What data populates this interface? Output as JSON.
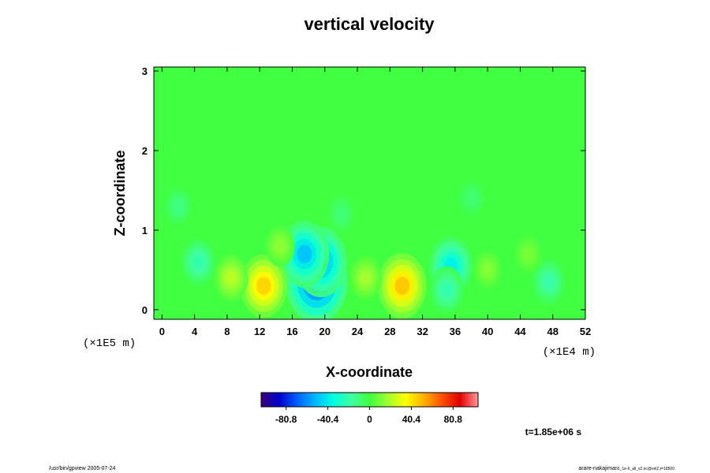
{
  "chart_data": {
    "type": "heatmap",
    "title": "vertical velocity",
    "xlabel": "X-coordinate",
    "ylabel": "Z-coordinate",
    "x_ticks": [
      "0",
      "4",
      "8",
      "12",
      "16",
      "20",
      "24",
      "28",
      "32",
      "36",
      "40",
      "44",
      "48",
      "52"
    ],
    "y_ticks": [
      "0",
      "1",
      "2",
      "3"
    ],
    "xlim": [
      -1,
      52
    ],
    "ylim": [
      -0.12,
      3.05
    ],
    "x_scale_label": "(×1E4 m)",
    "y_scale_label": "(×1E5 m)",
    "colorbar": {
      "range": [
        -105,
        105
      ],
      "tick_values": [
        -80.8,
        -40.4,
        0,
        40.4,
        80.8
      ],
      "tick_labels": [
        "-80.8",
        "-40.4",
        "0",
        "40.4",
        "80.8"
      ],
      "colors": [
        "#3a007a",
        "#0000cc",
        "#0060ff",
        "#00b8ff",
        "#00ffe0",
        "#40ffa0",
        "#40ff40",
        "#a0ff30",
        "#ffff00",
        "#ffb000",
        "#ff5000",
        "#e00000",
        "#ff9a9a"
      ]
    },
    "background_value": 0,
    "features": [
      {
        "x": 19,
        "z": 0.35,
        "w": -72
      },
      {
        "x": 19.5,
        "z": 0.6,
        "w": -55
      },
      {
        "x": 17.5,
        "z": 0.7,
        "w": -50
      },
      {
        "x": 35.5,
        "z": 0.55,
        "w": -38
      },
      {
        "x": 35,
        "z": 0.25,
        "w": -22
      },
      {
        "x": 12.5,
        "z": 0.3,
        "w": 45
      },
      {
        "x": 29.5,
        "z": 0.3,
        "w": 48
      },
      {
        "x": 8.5,
        "z": 0.4,
        "w": 22
      },
      {
        "x": 25,
        "z": 0.4,
        "w": 18
      },
      {
        "x": 4.5,
        "z": 0.6,
        "w": -22
      },
      {
        "x": 47.5,
        "z": 0.35,
        "w": -20
      },
      {
        "x": 40,
        "z": 0.5,
        "w": 12
      },
      {
        "x": 45,
        "z": 0.7,
        "w": 10
      },
      {
        "x": 14.5,
        "z": 0.8,
        "w": 14
      },
      {
        "x": 2,
        "z": 1.3,
        "w": -12
      },
      {
        "x": 22,
        "z": 1.2,
        "w": -10
      },
      {
        "x": 38,
        "z": 1.4,
        "w": -9
      }
    ]
  },
  "time_label": "t=1.85e+06 s",
  "footer_left": "/usr/bin/gpview 2005-07-24",
  "footer_right_main": "arare-nakajima",
  "footer_right_sub": "55_1e-6_all_v2.nc@velZ,t=18500"
}
